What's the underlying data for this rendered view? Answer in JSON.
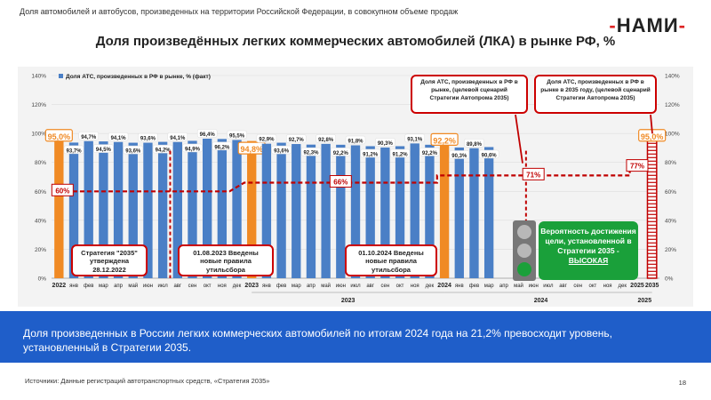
{
  "header": {
    "subtitle": "Доля автомобилей и автобусов, произведенных на территории Российской Федерации, в совокупном объеме продаж",
    "logo": "НАМИ",
    "title": "Доля произведённых легких коммерческих автомобилей (ЛКА) в рынке РФ, %"
  },
  "chart_data": {
    "type": "bar",
    "legend": "Доля АТС, произведенных в РФ в рынке, % (факт)",
    "ylim": [
      0,
      140
    ],
    "y_ticks": [
      "0%",
      "20%",
      "40%",
      "60%",
      "80%",
      "100%",
      "120%",
      "140%"
    ],
    "categories": [
      "2022",
      "янв",
      "фев",
      "мар",
      "апр",
      "май",
      "июн",
      "июл",
      "авг",
      "сен",
      "окт",
      "ноя",
      "дек",
      "2023",
      "янв",
      "фев",
      "мар",
      "апр",
      "май",
      "июн",
      "июл",
      "авг",
      "сен",
      "окт",
      "ноя",
      "дек",
      "2024",
      "янв",
      "фев",
      "мар",
      "апр",
      "май",
      "июн",
      "июл",
      "авг",
      "сен",
      "окт",
      "ноя",
      "дек",
      "2025",
      "2035"
    ],
    "values": [
      95.0,
      93.7,
      94.7,
      94.5,
      94.1,
      93.6,
      93.6,
      94.2,
      94.1,
      94.9,
      96.4,
      96.2,
      95.5,
      94.8,
      92.9,
      93.6,
      92.7,
      92.3,
      92.8,
      92.2,
      91.8,
      91.2,
      90.3,
      91.2,
      93.1,
      92.2,
      92.2,
      90.3,
      89.8,
      90.6,
      null,
      null,
      null,
      null,
      null,
      null,
      null,
      null,
      null,
      null,
      95.0
    ],
    "labels": [
      "95,0%",
      "93,7%",
      "94,7%",
      "94,5%",
      "94,1%",
      "93,6%",
      "93,6%",
      "94,2%",
      "94,1%",
      "94,9%",
      "96,4%",
      "96,2%",
      "95,5%",
      "94,8%",
      "92,9%",
      "93,6%",
      "92,7%",
      "92,3%",
      "92,8%",
      "92,2%",
      "91,8%",
      "91,2%",
      "90,3%",
      "91,2%",
      "93,1%",
      "92,2%",
      "92,2%",
      "90,3%",
      "89,8%",
      "90,6%",
      "",
      "",
      "",
      "",
      "",
      "",
      "",
      "",
      "",
      "",
      "95,0%"
    ],
    "annual_indices": [
      0,
      13,
      26
    ],
    "year_groups": [
      "2023",
      "2024",
      "2025"
    ],
    "colors": {
      "monthly": "#4a7fc6",
      "annual": "#f08a24",
      "target": "#c00000",
      "axis": "#555555"
    },
    "target_scenario": {
      "name": "Доля АТС, произведенных в РФ в рынке, (целевой сценарий Стратегии Автопрома 2035)",
      "steps": [
        {
          "from": 0,
          "to": 12,
          "value": 60,
          "label": "60%"
        },
        {
          "from": 13,
          "to": 26,
          "value": 66,
          "label": "66%"
        },
        {
          "from": 26,
          "to": 39,
          "value": 71,
          "label": "71%"
        },
        {
          "from": 39,
          "to": 40,
          "value": 77,
          "label": "77%"
        }
      ]
    },
    "policy_markers": [
      7.5,
      31.5
    ]
  },
  "callouts": {
    "scenario": "Доля АТС, произведенных в РФ в рынке, (целевой сценарий Стратегии Автопрома 2035)",
    "scenario_2035": "Доля АТС, произведенных в РФ в рынке в 2035 году, (целевой сценарий Стратегии Автопрома 2035)",
    "strategy": "Стратегия \"2035\" утверждена 28.12.2022",
    "util_2023": "01.08.2023 Введены новые правила утильсбора",
    "util_2024": "01.10.2024 Введены новые правила утильсбора"
  },
  "probability": {
    "text": "Вероятность достижения цели, установленной в Стратегии 2035 -",
    "level": "ВЫСОКАЯ",
    "lights": [
      "#b8b8b8",
      "#b8b8b8",
      "#1aa03a"
    ]
  },
  "banner": {
    "text": "Доля произведенных в России легких коммерческих автомобилей по итогам 2024 года на 21,2% превосходит уровень, установленный в Стратегии 2035."
  },
  "footer": {
    "source": "Источники: Данные регистраций автотранспортных средств, «Стратегия 2035»",
    "page": "18"
  }
}
